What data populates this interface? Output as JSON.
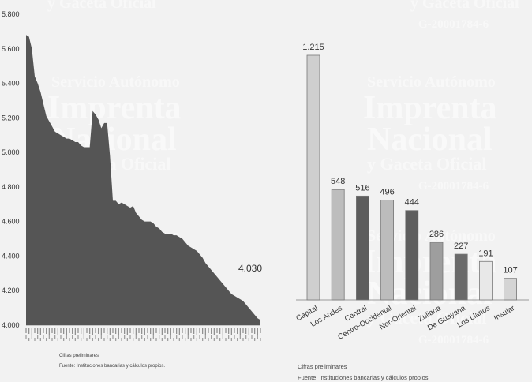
{
  "watermark": {
    "line1": "Servicio Autónomo",
    "line2": "Imprenta",
    "line3": "Nacional",
    "line4": "y Gaceta Oficial",
    "code": "G-20001784-6"
  },
  "chart_data": [
    {
      "type": "area",
      "color": "#555555",
      "yticks": [
        "5.800",
        "5.600",
        "5.400",
        "5.200",
        "5.000",
        "4.800",
        "4.600",
        "4.400",
        "4.200",
        "4.000"
      ],
      "ylim": [
        4000,
        5800
      ],
      "values": [
        5680,
        5670,
        5600,
        5440,
        5400,
        5350,
        5280,
        5210,
        5180,
        5150,
        5120,
        5110,
        5100,
        5090,
        5080,
        5080,
        5070,
        5060,
        5060,
        5040,
        5030,
        5030,
        5030,
        5240,
        5220,
        5190,
        5140,
        5170,
        5170,
        4980,
        4720,
        4720,
        4700,
        4710,
        4700,
        4690,
        4680,
        4690,
        4650,
        4630,
        4610,
        4600,
        4600,
        4600,
        4590,
        4570,
        4560,
        4540,
        4530,
        4530,
        4530,
        4520,
        4520,
        4510,
        4500,
        4480,
        4460,
        4450,
        4440,
        4430,
        4410,
        4390,
        4360,
        4340,
        4320,
        4300,
        4280,
        4260,
        4240,
        4220,
        4200,
        4180,
        4170,
        4160,
        4150,
        4140,
        4120,
        4100,
        4080,
        4060,
        4040,
        4030
      ],
      "end_label": "4.030",
      "note_lines": [
        "Cifras preliminares",
        "Fuente: Instituciones bancarias y cálculos propios."
      ]
    },
    {
      "type": "bar",
      "categories": [
        "Capital",
        "Los Andes",
        "Central",
        "Centro-Occidental",
        "Nor-Oriental",
        "Zuliana",
        "De Guayana",
        "Los Llanos",
        "Insular"
      ],
      "values": [
        1215,
        548,
        516,
        496,
        444,
        286,
        227,
        191,
        107
      ],
      "labels": [
        "1.215",
        "548",
        "516",
        "496",
        "444",
        "286",
        "227",
        "191",
        "107"
      ],
      "colors": [
        "#cfcfcf",
        "#bdbdbd",
        "#5d5d5d",
        "#bcbcbc",
        "#5e5e5e",
        "#9e9e9e",
        "#6a6a6a",
        "#e8e8e8",
        "#d4d4d4"
      ],
      "note_lines": [
        "Cifras preliminares",
        "Fuente: Instituciones bancarias y cálculos propios."
      ]
    }
  ]
}
